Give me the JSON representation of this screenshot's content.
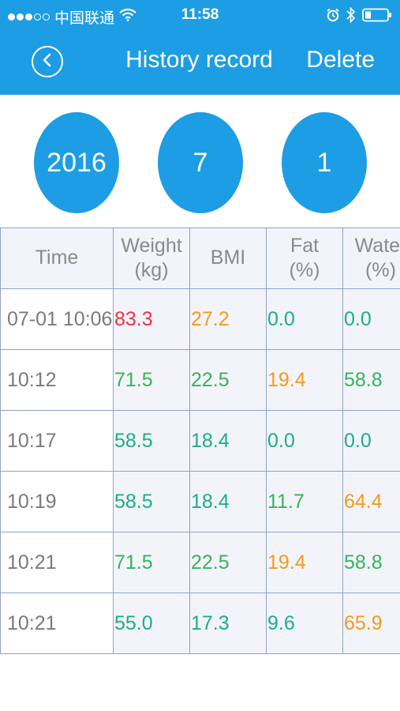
{
  "status_bar": {
    "carrier": "中国联通",
    "time": "11:58"
  },
  "nav": {
    "back_icon": "chevron-left-circle-icon",
    "title": "History record",
    "delete_label": "Delete"
  },
  "date_selector": {
    "year": "2016",
    "month": "7",
    "day": "1"
  },
  "table": {
    "headers": {
      "time": "Time",
      "weight": [
        "Weight",
        "(kg)"
      ],
      "bmi": "BMI",
      "fat": [
        "Fat",
        "(%)"
      ],
      "water": [
        "Water",
        "(%)"
      ]
    },
    "rows": [
      {
        "time": "07-01 10:06",
        "weight": "83.3",
        "bmi": "27.2",
        "fat": "0.0",
        "water": "0.0",
        "colors": {
          "weight": "red",
          "bmi": "orange",
          "fat": "teal",
          "water": "teal"
        }
      },
      {
        "time": "10:12",
        "weight": "71.5",
        "bmi": "22.5",
        "fat": "19.4",
        "water": "58.8",
        "colors": {
          "weight": "green",
          "bmi": "green",
          "fat": "orange",
          "water": "green"
        }
      },
      {
        "time": "10:17",
        "weight": "58.5",
        "bmi": "18.4",
        "fat": "0.0",
        "water": "0.0",
        "colors": {
          "weight": "teal",
          "bmi": "teal",
          "fat": "teal",
          "water": "teal"
        }
      },
      {
        "time": "10:19",
        "weight": "58.5",
        "bmi": "18.4",
        "fat": "11.7",
        "water": "64.4",
        "colors": {
          "weight": "teal",
          "bmi": "teal",
          "fat": "green",
          "water": "orange"
        }
      },
      {
        "time": "10:21",
        "weight": "71.5",
        "bmi": "22.5",
        "fat": "19.4",
        "water": "58.8",
        "colors": {
          "weight": "green",
          "bmi": "green",
          "fat": "orange",
          "water": "green"
        }
      },
      {
        "time": "10:21",
        "weight": "55.0",
        "bmi": "17.3",
        "fat": "9.6",
        "water": "65.9",
        "colors": {
          "weight": "teal",
          "bmi": "teal",
          "fat": "teal",
          "water": "orange"
        }
      }
    ]
  },
  "colors": {
    "accent": "#1d9de4",
    "red": "#f0313e",
    "orange": "#f39a1e",
    "green": "#36b35a",
    "teal": "#1aad8c"
  }
}
